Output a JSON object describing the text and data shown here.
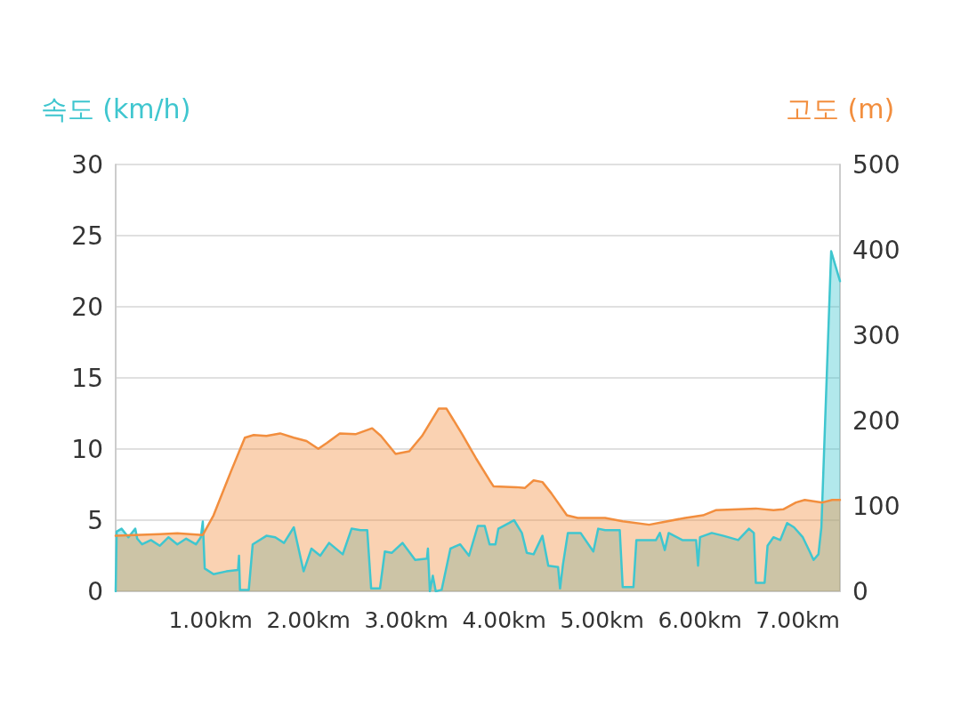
{
  "chart_data": {
    "type": "area",
    "ylabel": "속도 (km/h)",
    "y2label": "고도 (m)",
    "xlim": [
      0.03,
      7.43
    ],
    "xticks": [
      {
        "value": 1,
        "label": "1.00km"
      },
      {
        "value": 2,
        "label": "2.00km"
      },
      {
        "value": 3,
        "label": "3.00km"
      },
      {
        "value": 4,
        "label": "4.00km"
      },
      {
        "value": 5,
        "label": "5.00km"
      },
      {
        "value": 6,
        "label": "6.00km"
      },
      {
        "value": 7,
        "label": "7.00km"
      }
    ],
    "ylim": [
      0,
      30
    ],
    "yticks": [
      0,
      5,
      10,
      15,
      20,
      25,
      30
    ],
    "y2lim": [
      0,
      500
    ],
    "y2ticks": [
      0,
      100,
      200,
      300,
      400,
      500
    ],
    "grid": "y",
    "marker": "none",
    "line_style": "solid",
    "series": [
      {
        "color": "#3fc6cf",
        "x": [
          0.03,
          0.04,
          0.09,
          0.16,
          0.23,
          0.25,
          0.3,
          0.39,
          0.48,
          0.57,
          0.66,
          0.75,
          0.85,
          0.9,
          0.92,
          0.94,
          1.03,
          1.16,
          1.28,
          1.29,
          1.3,
          1.39,
          1.43,
          1.57,
          1.66,
          1.75,
          1.85,
          1.95,
          2.03,
          2.12,
          2.21,
          2.35,
          2.44,
          2.53,
          2.6,
          2.64,
          2.73,
          2.78,
          2.85,
          2.96,
          3.09,
          3.21,
          3.22,
          3.24,
          3.27,
          3.3,
          3.36,
          3.45,
          3.55,
          3.64,
          3.73,
          3.8,
          3.85,
          3.91,
          3.94,
          4.05,
          4.1,
          4.18,
          4.23,
          4.3,
          4.39,
          4.45,
          4.55,
          4.57,
          4.6,
          4.65,
          4.78,
          4.91,
          4.96,
          5.03,
          5.18,
          5.21,
          5.32,
          5.35,
          5.55,
          5.59,
          5.64,
          5.68,
          5.82,
          5.96,
          5.98,
          6,
          6.12,
          6.24,
          6.39,
          6.5,
          6.55,
          6.57,
          6.66,
          6.69,
          6.75,
          6.82,
          6.89,
          6.96,
          7.05,
          7.12,
          7.16,
          7.21,
          7.24,
          7.34,
          7.43
        ],
        "values": [
          0,
          4.2,
          4.4,
          3.8,
          4.4,
          3.7,
          3.3,
          3.6,
          3.2,
          3.8,
          3.3,
          3.7,
          3.3,
          3.8,
          4.9,
          1.6,
          1.2,
          1.4,
          1.5,
          2.5,
          0.1,
          0.1,
          3.3,
          3.9,
          3.8,
          3.4,
          4.5,
          1.4,
          3.0,
          2.5,
          3.4,
          2.6,
          4.4,
          4.3,
          4.3,
          0.2,
          0.2,
          2.8,
          2.7,
          3.4,
          2.2,
          2.3,
          3.0,
          0,
          1.1,
          0,
          0.1,
          3.0,
          3.3,
          2.5,
          4.6,
          4.6,
          3.3,
          3.3,
          4.4,
          4.8,
          5.0,
          4.1,
          2.7,
          2.6,
          3.9,
          1.8,
          1.7,
          0.2,
          1.9,
          4.1,
          4.1,
          2.8,
          4.4,
          4.3,
          4.3,
          0.3,
          0.3,
          3.6,
          3.6,
          4.1,
          2.9,
          4.1,
          3.6,
          3.6,
          1.8,
          3.8,
          4.1,
          3.9,
          3.6,
          4.4,
          4.1,
          0.6,
          0.6,
          3.2,
          3.8,
          3.6,
          4.8,
          4.5,
          3.8,
          2.8,
          2.2,
          2.6,
          4.5,
          23.9,
          21.8
        ]
      },
      {
        "color": "#f28e3e",
        "axis": "y2",
        "x": [
          0.03,
          0.48,
          0.66,
          0.92,
          1.03,
          1.21,
          1.35,
          1.44,
          1.57,
          1.71,
          1.85,
          1.98,
          2.1,
          2.19,
          2.32,
          2.48,
          2.65,
          2.74,
          2.89,
          3.03,
          3.16,
          3.33,
          3.41,
          3.57,
          3.71,
          3.85,
          3.89,
          4.12,
          4.21,
          4.3,
          4.39,
          4.48,
          4.64,
          4.75,
          5.03,
          5.21,
          5.48,
          5.62,
          5.85,
          6.03,
          6.16,
          6.57,
          6.75,
          6.85,
          6.98,
          7.07,
          7.25,
          7.35,
          7.43
        ],
        "values": [
          65,
          67,
          68,
          66,
          89,
          141,
          180,
          183,
          182,
          185,
          180,
          176,
          167,
          174,
          185,
          184,
          191,
          182,
          161,
          164,
          182,
          214,
          214,
          184,
          156,
          130,
          123,
          122,
          121,
          130,
          128,
          115,
          89,
          86,
          86,
          82,
          78,
          81,
          86,
          89,
          95,
          97,
          95,
          96,
          104,
          107,
          104,
          107,
          107
        ]
      }
    ]
  }
}
